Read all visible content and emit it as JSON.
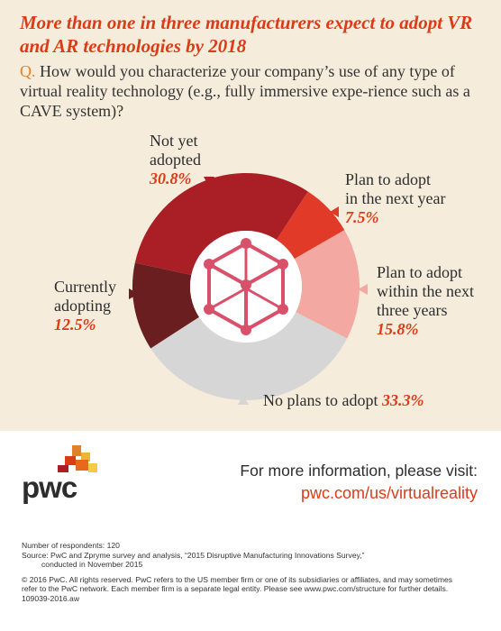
{
  "title": "More than one in three manufacturers expect to adopt VR and AR technologies by 2018",
  "question": {
    "prefix": "Q.",
    "text": "How would you characterize your company’s use of any type of virtual reality technology (e.g., fully immersive expe-rience such as a CAVE system)?"
  },
  "chart_data": {
    "type": "pie",
    "variant": "donut",
    "center_icon": "cube-icon",
    "slices": [
      {
        "label": "Not yet adopted",
        "value": 30.8,
        "display": "30.8%",
        "color": "#aa1e26"
      },
      {
        "label": "Plan to adopt in the next year",
        "value": 7.5,
        "display": "7.5%",
        "color": "#e13a28"
      },
      {
        "label": "Plan to adopt within the next three years",
        "value": 15.8,
        "display": "15.8%",
        "color": "#f3a9a1"
      },
      {
        "label": "No plans to adopt",
        "value": 33.3,
        "display": "33.3%",
        "color": "#d6d6d6"
      },
      {
        "label": "Currently adopting",
        "value": 12.5,
        "display": "12.5%",
        "color": "#6b1e1f"
      }
    ]
  },
  "labels": {
    "not_yet_line1": "Not yet",
    "not_yet_line2": "adopted",
    "next_year_line1": "Plan to adopt",
    "next_year_line2": "in the next year",
    "three_years_line1": "Plan to adopt",
    "three_years_line2": "within the next",
    "three_years_line3": "three years",
    "no_plans": "No plans to adopt",
    "currently_line1": "Currently",
    "currently_line2": "adopting"
  },
  "footer": {
    "logo": "pwc",
    "info_text": "For more information, please visit:",
    "info_link": "pwc.com/us/virtualreality",
    "respondents": "Number of respondents: 120",
    "source_line1": "Source: PwC and Zpryme survey and analysis, “2015 Disruptive Manufacturing Innovations Survey,”",
    "source_line2": "conducted in November 2015",
    "copyright_line1": "© 2016 PwC. All rights reserved. PwC refers to the US member firm or one of its subsidiaries or affiliates, and may sometimes",
    "copyright_line2": "refer to the PwC network. Each member firm is a separate legal entity. Please see www.pwc.com/structure for further details.",
    "job_code": "109039-2016.aw"
  },
  "colors": {
    "accent": "#db3b16",
    "background_top": "#f5ecdc",
    "icon": "#d9506a"
  }
}
